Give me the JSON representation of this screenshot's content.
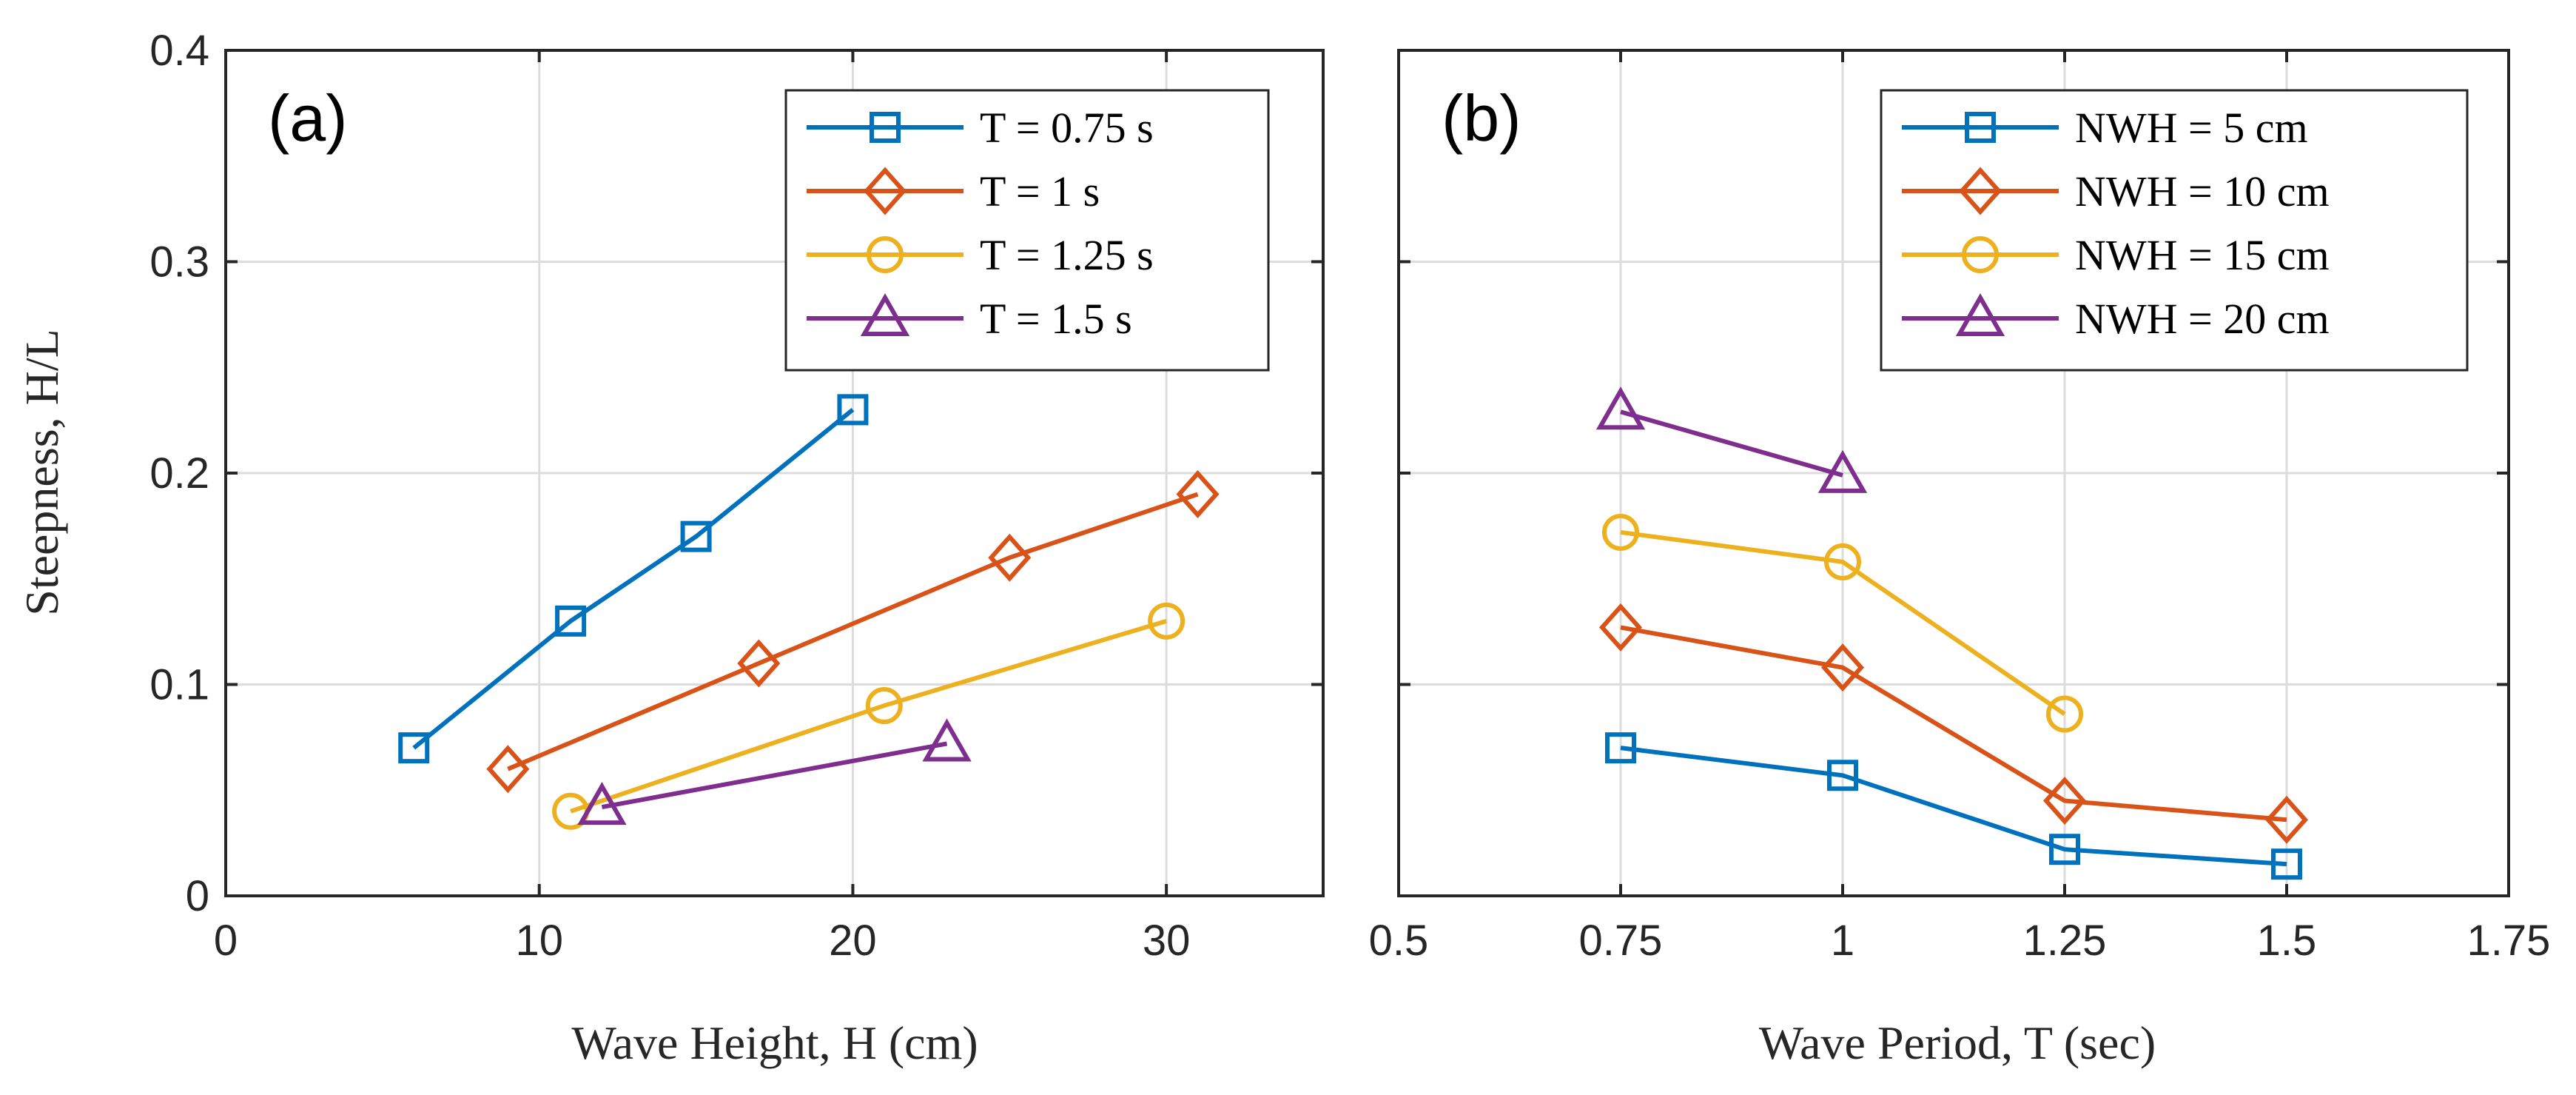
{
  "chart_data": [
    {
      "type": "line",
      "panel_label": "(a)",
      "title": "",
      "xlabel": "Wave Height, H (cm)",
      "ylabel": "Steepness, H/L",
      "xlim": [
        0,
        35
      ],
      "ylim": [
        0,
        0.4
      ],
      "xticks": [
        0,
        10,
        20,
        30
      ],
      "xtick_labels": [
        "0",
        "10",
        "20",
        "30"
      ],
      "yticks": [
        0,
        0.1,
        0.2,
        0.3,
        0.4
      ],
      "ytick_labels": [
        "0",
        "0.1",
        "0.2",
        "0.3",
        "0.4"
      ],
      "grid": true,
      "legend_position": "top-right",
      "series": [
        {
          "name": "T = 0.75 s",
          "color": "#0072BD",
          "marker": "square",
          "x": [
            6,
            11,
            15,
            20
          ],
          "y": [
            0.07,
            0.13,
            0.17,
            0.23
          ]
        },
        {
          "name": "T = 1 s",
          "color": "#D95319",
          "marker": "diamond",
          "x": [
            9,
            17,
            25,
            31
          ],
          "y": [
            0.06,
            0.11,
            0.16,
            0.19
          ]
        },
        {
          "name": "T = 1.25 s",
          "color": "#EDB120",
          "marker": "circle",
          "x": [
            11,
            21,
            30
          ],
          "y": [
            0.04,
            0.09,
            0.13
          ]
        },
        {
          "name": "T = 1.5 s",
          "color": "#7E2F8E",
          "marker": "triangle",
          "x": [
            12,
            23
          ],
          "y": [
            0.042,
            0.072
          ]
        }
      ]
    },
    {
      "type": "line",
      "panel_label": "(b)",
      "title": "",
      "xlabel": "Wave Period, T (sec)",
      "ylabel": "",
      "xlim": [
        0.5,
        1.75
      ],
      "ylim": [
        0,
        0.4
      ],
      "xticks": [
        0.5,
        0.75,
        1,
        1.25,
        1.5,
        1.75
      ],
      "xtick_labels": [
        "0.5",
        "0.75",
        "1",
        "1.25",
        "1.5",
        "1.75"
      ],
      "yticks": [
        0,
        0.1,
        0.2,
        0.3,
        0.4
      ],
      "ytick_labels": [],
      "grid": true,
      "legend_position": "top-right",
      "series": [
        {
          "name": "NWH = 5 cm",
          "color": "#0072BD",
          "marker": "square",
          "x": [
            0.75,
            1,
            1.25,
            1.5
          ],
          "y": [
            0.07,
            0.057,
            0.022,
            0.015
          ]
        },
        {
          "name": "NWH = 10 cm",
          "color": "#D95319",
          "marker": "diamond",
          "x": [
            0.75,
            1,
            1.25,
            1.5
          ],
          "y": [
            0.127,
            0.108,
            0.045,
            0.036
          ]
        },
        {
          "name": "NWH = 15 cm",
          "color": "#EDB120",
          "marker": "circle",
          "x": [
            0.75,
            1,
            1.25
          ],
          "y": [
            0.172,
            0.158,
            0.086
          ]
        },
        {
          "name": "NWH = 20 cm",
          "color": "#7E2F8E",
          "marker": "triangle",
          "x": [
            0.75,
            1
          ],
          "y": [
            0.229,
            0.199
          ]
        }
      ]
    }
  ]
}
